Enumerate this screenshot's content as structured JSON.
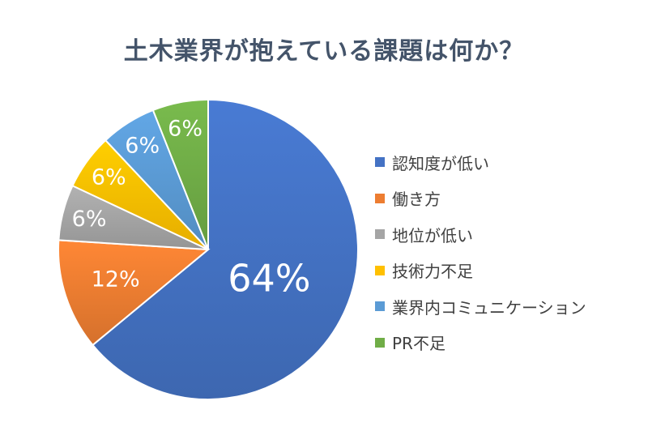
{
  "chart_data": {
    "type": "pie",
    "title": "土木業界が抱えている課題は何か？",
    "unit": "%",
    "series": [
      {
        "label": "認知度が低い",
        "value": 64,
        "color": "#4472c4",
        "data_label": "64%"
      },
      {
        "label": "働き方",
        "value": 12,
        "color": "#ed7d31",
        "data_label": "12%"
      },
      {
        "label": "地位が低い",
        "value": 6,
        "color": "#a5a5a5",
        "data_label": "6%"
      },
      {
        "label": "技術力不足",
        "value": 6,
        "color": "#ffc000",
        "data_label": "6%"
      },
      {
        "label": "業界内コミュニケーション",
        "value": 6,
        "color": "#5b9bd5",
        "data_label": "6%"
      },
      {
        "label": "PR不足",
        "value": 6,
        "color": "#70ad47",
        "data_label": "6%"
      }
    ],
    "start_angle": "12 o'clock",
    "direction": "clockwise",
    "legend_position": "right"
  }
}
